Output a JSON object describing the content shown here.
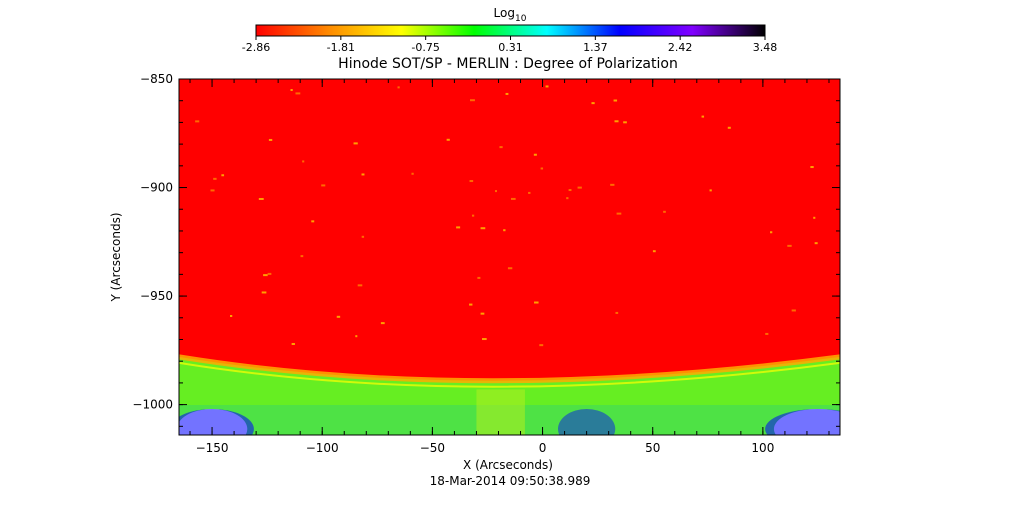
{
  "colorbar": {
    "label_base": "Log",
    "label_sub": "10",
    "ticks": [
      "-2.86",
      "-1.81",
      "-0.75",
      "0.31",
      "1.37",
      "2.42",
      "3.48"
    ],
    "range": [
      -2.86,
      3.48
    ],
    "colormap": [
      "#ff0000",
      "#ff8a00",
      "#ffff00",
      "#00ff00",
      "#00ffff",
      "#0000ff",
      "#8000ff",
      "#000000"
    ]
  },
  "chart_data": {
    "type": "heatmap",
    "title": "Hinode SOT/SP - MERLIN : Degree of Polarization",
    "xlabel": "X (Arcseconds)",
    "ylabel": "Y (Arcseconds)",
    "xlim": [
      -165,
      135
    ],
    "ylim": [
      -1014,
      -850
    ],
    "x_ticks": [
      -150,
      -100,
      -50,
      0,
      50,
      100
    ],
    "x_tick_labels": [
      "−150",
      "−100",
      "−50",
      "0",
      "50",
      "100"
    ],
    "y_ticks": [
      -850,
      -900,
      -950,
      -1000
    ],
    "y_tick_labels": [
      "−850",
      "−900",
      "−950",
      "−1000"
    ],
    "colors": {
      "disk": "#ff0000",
      "limb": "#66ee22",
      "off_limb": "#22cc88",
      "noise": "#0000ff",
      "no_data": "#ffffff"
    },
    "limb_y_at_edges": -978,
    "limb_y_at_center": -989,
    "timestamp": "18-Mar-2014 09:50:38.989"
  }
}
